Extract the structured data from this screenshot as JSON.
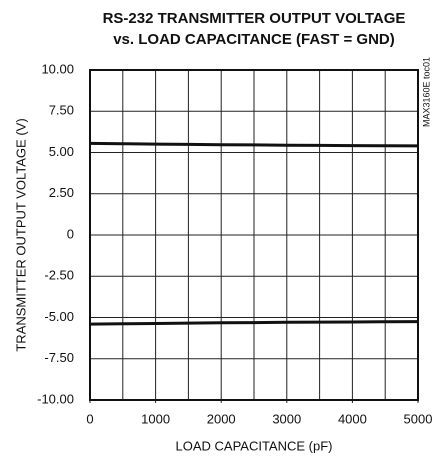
{
  "chart_data": {
    "type": "line",
    "title": [
      "RS-232 TRANSMITTER OUTPUT VOLTAGE",
      "vs. LOAD CAPACITANCE (FAST = GND)"
    ],
    "xlabel": "LOAD CAPACITANCE (pF)",
    "ylabel": "TRANSMITTER OUTPUT VOLTAGE (V)",
    "annotation": "MAX3160E toc01",
    "x": [
      0,
      500,
      1000,
      1500,
      2000,
      2500,
      3000,
      3500,
      4000,
      4500,
      5000
    ],
    "series": [
      {
        "color": "#111111",
        "values": [
          5.55,
          5.53,
          5.51,
          5.49,
          5.47,
          5.46,
          5.44,
          5.43,
          5.42,
          5.41,
          5.4
        ]
      },
      {
        "color": "#111111",
        "values": [
          -5.4,
          -5.38,
          -5.36,
          -5.34,
          -5.32,
          -5.31,
          -5.29,
          -5.28,
          -5.27,
          -5.26,
          -5.25
        ]
      }
    ],
    "xlim": [
      0,
      5000
    ],
    "xticks": [
      0,
      1000,
      2000,
      3000,
      4000,
      5000
    ],
    "xgrid": [
      500,
      1000,
      1500,
      2000,
      2500,
      3000,
      3500,
      4000,
      4500
    ],
    "ylim": [
      -10,
      10
    ],
    "yticks": [
      {
        "value": -10,
        "label": "-10.00"
      },
      {
        "value": -7.5,
        "label": "-7.50"
      },
      {
        "value": -5,
        "label": "-5.00"
      },
      {
        "value": -2.5,
        "label": "-2.50"
      },
      0,
      {
        "value": 2.5,
        "label": "2.50"
      },
      {
        "value": 5,
        "label": "5.00"
      },
      {
        "value": 7.5,
        "label": "7.50"
      },
      {
        "value": 10,
        "label": "10.00"
      }
    ],
    "grid": true
  }
}
